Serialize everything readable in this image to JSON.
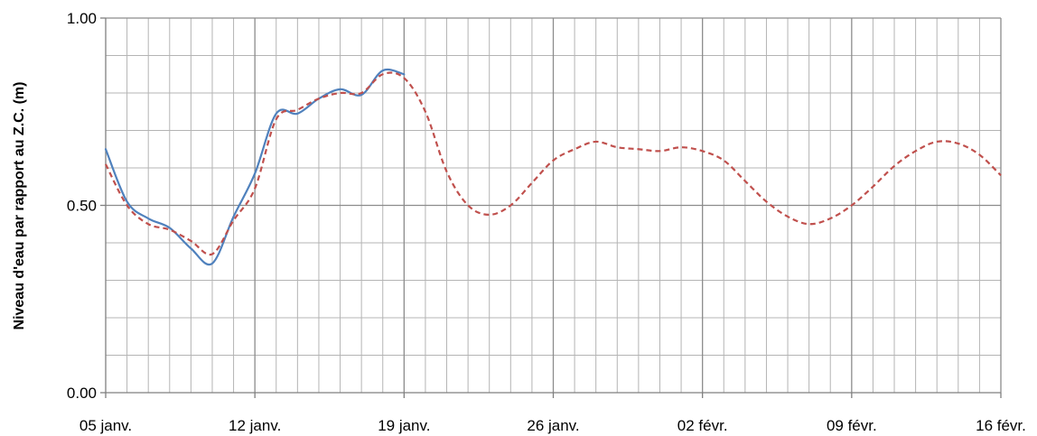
{
  "chart_data": {
    "type": "line",
    "ylabel": "Niveau d'eau par rapport au Z.C. (m)",
    "xlabel": "",
    "title": "",
    "x_tick_labels": [
      "05 janv.",
      "12 janv.",
      "19 janv.",
      "26 janv.",
      "02 févr.",
      "09 févr.",
      "16 févr."
    ],
    "y_tick_labels": [
      "0.00",
      "0.50",
      "1.00"
    ],
    "xlim": [
      "2024-01-05",
      "2024-02-16"
    ],
    "ylim": [
      0,
      1
    ],
    "grid": true,
    "legend": "none",
    "series": [
      {
        "color": "#4F81BD",
        "style": "solid",
        "points": [
          [
            "2024-01-05",
            0.65
          ],
          [
            "2024-01-06",
            0.51
          ],
          [
            "2024-01-07",
            0.465
          ],
          [
            "2024-01-08",
            0.44
          ],
          [
            "2024-01-09",
            0.385
          ],
          [
            "2024-01-10",
            0.345
          ],
          [
            "2024-01-11",
            0.47
          ],
          [
            "2024-01-12",
            0.585
          ],
          [
            "2024-01-13",
            0.745
          ],
          [
            "2024-01-14",
            0.745
          ],
          [
            "2024-01-15",
            0.785
          ],
          [
            "2024-01-16",
            0.81
          ],
          [
            "2024-01-17",
            0.795
          ],
          [
            "2024-01-18",
            0.86
          ],
          [
            "2024-01-19",
            0.85
          ]
        ]
      },
      {
        "color": "#C0504D",
        "style": "dashed",
        "points": [
          [
            "2024-01-05",
            0.61
          ],
          [
            "2024-01-06",
            0.5
          ],
          [
            "2024-01-07",
            0.45
          ],
          [
            "2024-01-08",
            0.435
          ],
          [
            "2024-01-09",
            0.405
          ],
          [
            "2024-01-10",
            0.37
          ],
          [
            "2024-01-11",
            0.46
          ],
          [
            "2024-01-12",
            0.545
          ],
          [
            "2024-01-13",
            0.73
          ],
          [
            "2024-01-14",
            0.755
          ],
          [
            "2024-01-15",
            0.785
          ],
          [
            "2024-01-16",
            0.8
          ],
          [
            "2024-01-17",
            0.8
          ],
          [
            "2024-01-18",
            0.85
          ],
          [
            "2024-01-19",
            0.84
          ],
          [
            "2024-01-20",
            0.75
          ],
          [
            "2024-01-21",
            0.59
          ],
          [
            "2024-01-22",
            0.5
          ],
          [
            "2024-01-23",
            0.475
          ],
          [
            "2024-01-24",
            0.5
          ],
          [
            "2024-01-25",
            0.56
          ],
          [
            "2024-01-26",
            0.62
          ],
          [
            "2024-01-27",
            0.65
          ],
          [
            "2024-01-28",
            0.67
          ],
          [
            "2024-01-29",
            0.655
          ],
          [
            "2024-01-30",
            0.65
          ],
          [
            "2024-01-31",
            0.645
          ],
          [
            "2024-02-01",
            0.655
          ],
          [
            "2024-02-02",
            0.645
          ],
          [
            "2024-02-03",
            0.62
          ],
          [
            "2024-02-04",
            0.565
          ],
          [
            "2024-02-05",
            0.51
          ],
          [
            "2024-02-06",
            0.47
          ],
          [
            "2024-02-07",
            0.45
          ],
          [
            "2024-02-08",
            0.465
          ],
          [
            "2024-02-09",
            0.5
          ],
          [
            "2024-02-10",
            0.55
          ],
          [
            "2024-02-11",
            0.605
          ],
          [
            "2024-02-12",
            0.645
          ],
          [
            "2024-02-13",
            0.67
          ],
          [
            "2024-02-14",
            0.665
          ],
          [
            "2024-02-15",
            0.635
          ],
          [
            "2024-02-16",
            0.58
          ]
        ]
      }
    ]
  }
}
